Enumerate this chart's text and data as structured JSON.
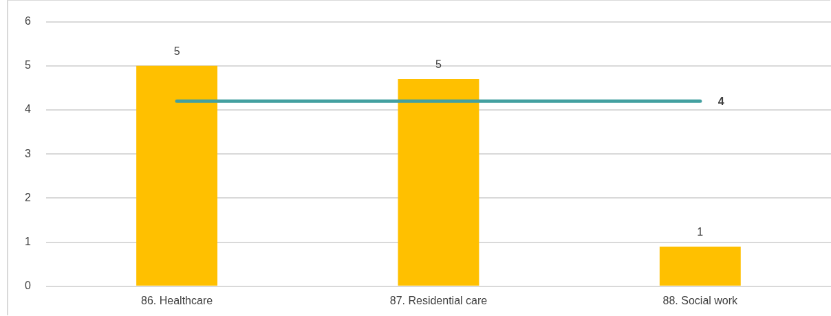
{
  "chart_data": {
    "type": "bar",
    "categories": [
      "86. Healthcare",
      "87. Residential care",
      "88. Social work"
    ],
    "series": [
      {
        "color": "#ffc000",
        "values": [
          5.0,
          4.7,
          0.9
        ],
        "value_labels": [
          "5",
          "5",
          "1"
        ]
      },
      {
        "type": "line",
        "color": "#43a0a0",
        "values": [
          4.2,
          4.2,
          4.2
        ],
        "value_labels": [
          null,
          null,
          "4"
        ],
        "marker": "none"
      }
    ],
    "ylim": [
      0,
      6
    ],
    "yticks": [
      0,
      1,
      2,
      3,
      4,
      5,
      6
    ],
    "grid": "y",
    "legend": false
  }
}
